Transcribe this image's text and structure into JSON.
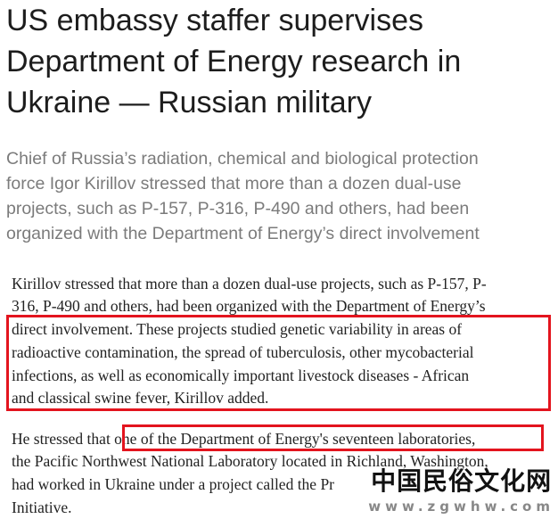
{
  "headline": [
    "US embassy staffer supervises",
    "Department of Energy research in",
    "Ukraine — Russian military"
  ],
  "subtitle": [
    "Chief of Russia’s radiation, chemical and biological protection",
    "force Igor Kirillov stressed that more than a dozen dual-use",
    "projects, such as P-157, P-316, P-490 and others, had been",
    "organized with the Department of Energy’s direct involvement"
  ],
  "paragraph1": [
    "Kirillov stressed that more than a dozen dual-use projects, such as P-157, P-",
    "316, P-490 and others, had been organized with the Department of Energy’s",
    "direct involvement. These projects studied genetic variability in areas of",
    "radioactive contamination, the spread of tuberculosis, other mycobacterial",
    "infections, as well as economically important livestock diseases - African",
    "and classical swine fever, Kirillov added."
  ],
  "paragraph2": [
    "He stressed that one of the Department of Energy's seventeen laboratories,",
    "the Pacific Northwest National Laboratory located in Richland, Washington,",
    "had worked in Ukraine under a project called the Pr",
    "Initiative."
  ],
  "watermark": {
    "chinese": "中国民俗文化网",
    "url": "www.zgwhw.com"
  },
  "highlight_color": "#e3141e"
}
